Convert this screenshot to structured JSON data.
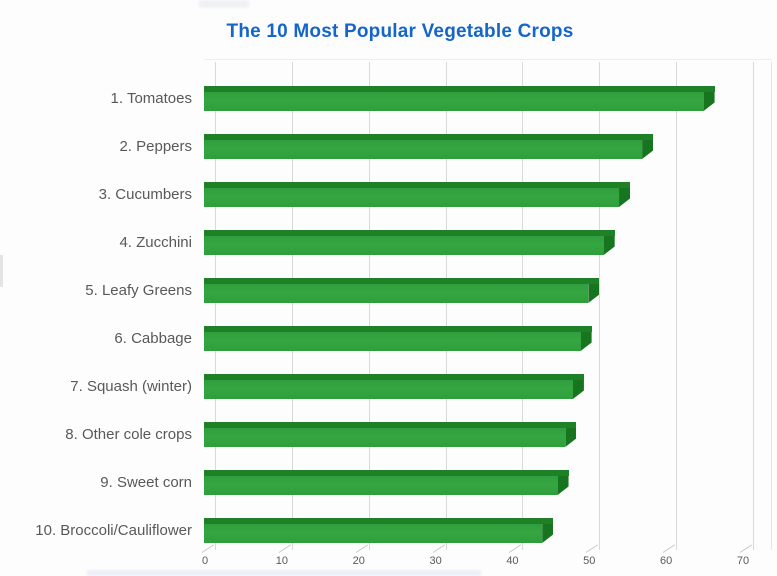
{
  "title": {
    "text": "The 10 Most Popular Vegetable Crops",
    "color": "#1566c8"
  },
  "chart_data": {
    "type": "bar",
    "orientation": "horizontal",
    "style": "3d-bevel",
    "title": "The 10 Most Popular Vegetable Crops",
    "categories": [
      "1. Tomatoes",
      "2. Peppers",
      "3. Cucumbers",
      "4. Zucchini",
      "5. Leafy Greens",
      "6. Cabbage",
      "7. Squash (winter)",
      "8. Other cole crops",
      "9. Sweet corn",
      "10. Broccoli/Cauliflower"
    ],
    "values": [
      65,
      57,
      54,
      52,
      50,
      49,
      48,
      47,
      46,
      44
    ],
    "xlabel": "",
    "ylabel": "",
    "xlim": [
      0,
      70
    ],
    "x_ticks": [
      0,
      10,
      20,
      30,
      40,
      50,
      60,
      70
    ],
    "grid": "vertical",
    "legend": "none",
    "colors": {
      "bar_face": "#2f9e3c",
      "bar_face_light": "#35a641",
      "bar_top": "#1e8128",
      "bar_end": "#17741f",
      "gridline": "#d9d9d9",
      "category_label": "#595959",
      "tick_label": "#595959",
      "title": "#1566c8"
    }
  }
}
